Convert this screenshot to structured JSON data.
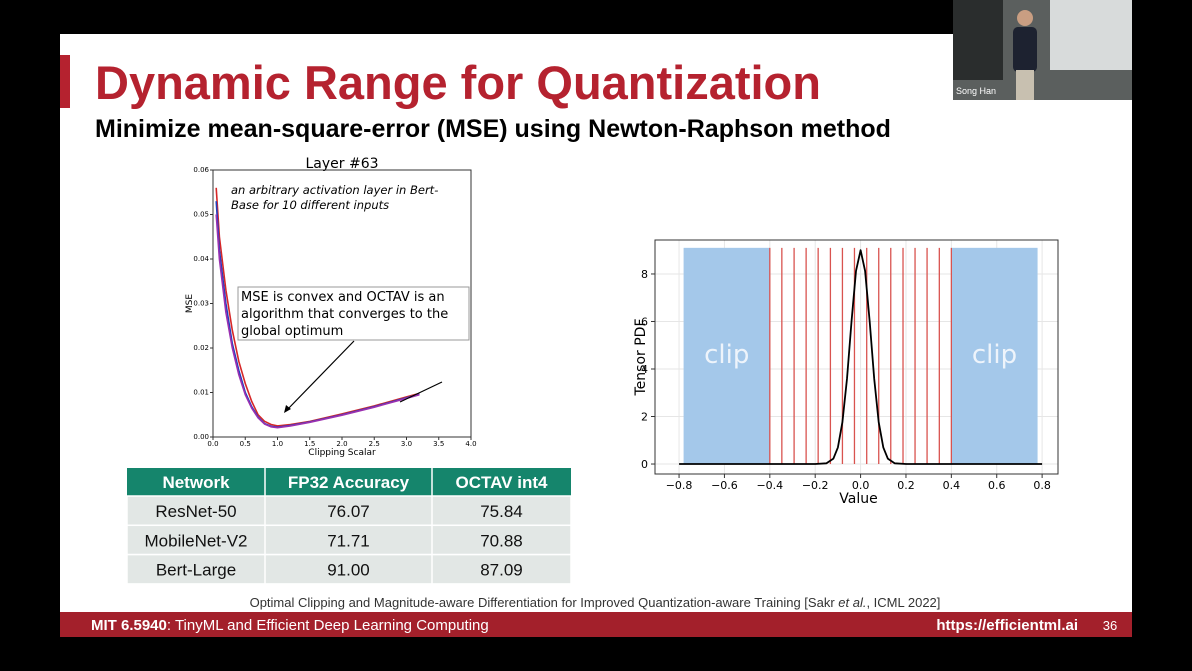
{
  "slide": {
    "title": "Dynamic Range for Quantization",
    "subtitle": "Minimize mean-square-error (MSE) using Newton-Raphson method",
    "citation": [
      "Optimal Clipping and Magnitude-aware Differentiation for Improved Quantization-aware Training [Sakr ",
      "et al.",
      ", ICML 2022]"
    ],
    "footer": {
      "course": "MIT 6.5940",
      "course_title": ": TinyML and Efficient Deep Learning Computing",
      "url": "https://efficientml.ai",
      "page": "36"
    }
  },
  "video": {
    "speaker": "Song Han"
  },
  "left_chart": {
    "type": "line",
    "title": "Layer #63",
    "x_label": "Clipping Scalar",
    "y_label": "MSE",
    "note": [
      "an arbitrary activation layer in Bert-",
      "Base for 10 different inputs"
    ],
    "callout": [
      "MSE is convex and OCTAV is an",
      "algorithm that  converges to the",
      "global optimum"
    ],
    "xlim": [
      0,
      4
    ],
    "ylim": [
      0,
      0.06
    ],
    "xticks": [
      {
        "value": 0,
        "label": "0.0"
      },
      0.5,
      {
        "value": 1,
        "label": "1.0"
      },
      1.5,
      {
        "value": 2,
        "label": "2.0"
      },
      2.5,
      {
        "value": 3,
        "label": "3.0"
      },
      3.5,
      {
        "value": 4,
        "label": "4.0"
      }
    ],
    "yticks": [
      {
        "value": 0,
        "label": "0.00"
      },
      0.01,
      0.02,
      0.03,
      0.04,
      0.05,
      0.06
    ],
    "x": [
      0.05,
      0.1,
      0.2,
      0.3,
      0.4,
      0.5,
      0.6,
      0.7,
      0.8,
      0.9,
      1.0,
      1.2,
      1.5,
      2.0,
      2.5,
      3.0,
      3.2
    ],
    "series": [
      {
        "color": "#d62728",
        "values": [
          0.056,
          0.045,
          0.033,
          0.024,
          0.017,
          0.012,
          0.008,
          0.005,
          0.0035,
          0.0028,
          0.0025,
          0.0028,
          0.0035,
          0.0052,
          0.007,
          0.009,
          0.0098
        ]
      },
      {
        "color": "#1f3fbf",
        "values": [
          0.053,
          0.042,
          0.03,
          0.021,
          0.015,
          0.01,
          0.0068,
          0.0045,
          0.003,
          0.0024,
          0.0022,
          0.0026,
          0.0034,
          0.005,
          0.0068,
          0.0088,
          0.0096
        ]
      },
      {
        "color": "#9b30b0",
        "values": [
          0.05,
          0.04,
          0.028,
          0.02,
          0.014,
          0.0095,
          0.0065,
          0.0043,
          0.0029,
          0.0023,
          0.0021,
          0.0025,
          0.0033,
          0.0049,
          0.0067,
          0.0087,
          0.0095
        ]
      }
    ]
  },
  "right_chart": {
    "type": "line",
    "x_label": "Value",
    "y_label": "Tensor PDF",
    "xlim": [
      -0.906,
      0.87
    ],
    "ylim": [
      -0.42,
      9.43
    ],
    "xticks": [
      {
        "value": -0.8,
        "label": "−0.8"
      },
      {
        "value": -0.6,
        "label": "−0.6"
      },
      {
        "value": -0.4,
        "label": "−0.4"
      },
      {
        "value": -0.2,
        "label": "−0.2"
      },
      {
        "value": 0,
        "label": "0.0"
      },
      0.2,
      0.4,
      0.6,
      0.8
    ],
    "yticks": [
      0,
      2,
      4,
      6,
      8
    ],
    "grid": true,
    "x": [
      -0.8,
      -0.2,
      -0.15,
      -0.12,
      -0.1,
      -0.08,
      -0.06,
      -0.04,
      -0.02,
      0,
      0.02,
      0.04,
      0.06,
      0.08,
      0.1,
      0.12,
      0.15,
      0.2,
      0.8
    ],
    "values": [
      0,
      0,
      0.03,
      0.23,
      0.7,
      1.76,
      3.59,
      5.99,
      8.13,
      9,
      8.13,
      5.99,
      3.59,
      1.76,
      0.7,
      0.23,
      0.03,
      0,
      0
    ],
    "color": "#000000",
    "bar_top": 9.1,
    "clip_regions": [
      {
        "from": -0.78,
        "to": -0.4,
        "label": "clip"
      },
      {
        "from": 0.4,
        "to": 0.78,
        "label": "clip"
      }
    ],
    "clip_color": "#a4c8ea",
    "level_color": "#d9534f",
    "levels": [
      -0.4,
      -0.347,
      -0.293,
      -0.24,
      -0.187,
      -0.133,
      -0.08,
      -0.027,
      0.027,
      0.08,
      0.133,
      0.187,
      0.24,
      0.293,
      0.347,
      0.4
    ]
  },
  "table": {
    "header": [
      "Network",
      "FP32 Accuracy",
      "OCTAV int4"
    ],
    "rows": [
      [
        "ResNet-50",
        "76.07",
        "75.84"
      ],
      [
        "MobileNet-V2",
        "71.71",
        "70.88"
      ],
      [
        "Bert-Large",
        "91.00",
        "87.09"
      ]
    ]
  }
}
